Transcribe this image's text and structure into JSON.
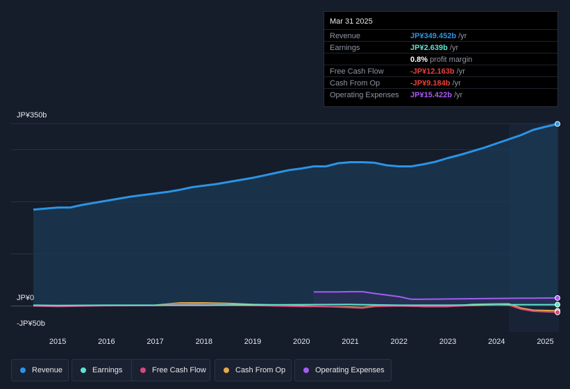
{
  "chart_data": {
    "type": "line",
    "title": "",
    "y_unit": "JP¥b",
    "ylim": [
      -50,
      350
    ],
    "y_tick_labels": {
      "top": "JP¥350b",
      "zero": "JP¥0",
      "bottom": "-JP¥50b"
    },
    "x_tick_labels": [
      "2015",
      "2016",
      "2017",
      "2018",
      "2019",
      "2020",
      "2021",
      "2022",
      "2023",
      "2024",
      "2025"
    ],
    "series": [
      {
        "name": "Revenue",
        "color": "#2b94e4",
        "x": [
          2014.5,
          2014.75,
          2015.0,
          2015.25,
          2015.5,
          2015.75,
          2016.0,
          2016.25,
          2016.5,
          2016.75,
          2017.0,
          2017.25,
          2017.5,
          2017.75,
          2018.0,
          2018.25,
          2018.5,
          2018.75,
          2019.0,
          2019.25,
          2019.5,
          2019.75,
          2020.0,
          2020.25,
          2020.5,
          2020.75,
          2021.0,
          2021.25,
          2021.5,
          2021.75,
          2022.0,
          2022.25,
          2022.5,
          2022.75,
          2023.0,
          2023.25,
          2023.5,
          2023.75,
          2024.0,
          2024.25,
          2024.5,
          2024.75,
          2025.0,
          2025.25
        ],
        "values": [
          185,
          187,
          189,
          189,
          194,
          198,
          202,
          206,
          210,
          213,
          216,
          219,
          223,
          228,
          231,
          234,
          238,
          242,
          246,
          251,
          256,
          261,
          264,
          268,
          268,
          274,
          276,
          276,
          275,
          270,
          268,
          268,
          272,
          277,
          284,
          290,
          297,
          304,
          312,
          320,
          328,
          338,
          344,
          349.5
        ]
      },
      {
        "name": "Earnings",
        "color": "#5ee3d0",
        "x": [
          2014.5,
          2015.0,
          2016.0,
          2017.0,
          2018.0,
          2019.0,
          2020.0,
          2021.0,
          2022.0,
          2023.0,
          2024.0,
          2025.25
        ],
        "values": [
          1.5,
          1.0,
          1.5,
          1.5,
          1.5,
          2.0,
          2.5,
          3.0,
          1.5,
          1.5,
          2.5,
          2.6
        ]
      },
      {
        "name": "Free Cash Flow",
        "color": "#d5487b",
        "x": [
          2014.5,
          2015.0,
          2016.0,
          2017.0,
          2017.5,
          2018.0,
          2018.5,
          2019.0,
          2019.5,
          2020.0,
          2020.5,
          2021.0,
          2021.25,
          2021.5,
          2022.0,
          2022.5,
          2023.0,
          2023.5,
          2024.0,
          2024.25,
          2024.5,
          2024.75,
          2025.25
        ],
        "values": [
          0,
          -1,
          0.5,
          1,
          4,
          3,
          2,
          1,
          0,
          -1,
          -1,
          -3,
          -4,
          -1,
          0,
          -1,
          -1,
          1,
          3,
          2,
          -6,
          -10,
          -12.2
        ]
      },
      {
        "name": "Cash From Op",
        "color": "#e8a94a",
        "x": [
          2014.5,
          2015.0,
          2016.0,
          2017.0,
          2017.5,
          2018.0,
          2018.5,
          2019.0,
          2019.5,
          2020.0,
          2020.5,
          2021.0,
          2021.25,
          2021.5,
          2022.0,
          2022.5,
          2023.0,
          2023.5,
          2024.0,
          2024.25,
          2024.5,
          2024.75,
          2025.25
        ],
        "values": [
          0.5,
          0,
          1,
          1.5,
          6,
          6,
          5,
          3,
          2,
          0,
          -1,
          -2,
          -3,
          0,
          1,
          -1,
          -1,
          3,
          4,
          4,
          -4,
          -8,
          -9.2
        ]
      },
      {
        "name": "Operating Expenses",
        "color": "#a55cf2",
        "x": [
          2020.25,
          2020.75,
          2021.0,
          2021.25,
          2021.5,
          2021.75,
          2022.0,
          2022.25,
          2022.5,
          2023.0,
          2023.5,
          2024.0,
          2024.5,
          2025.25
        ],
        "values": [
          27,
          27,
          27.5,
          27.5,
          24,
          21,
          18,
          13,
          13,
          13.5,
          14,
          14.5,
          15,
          15.4
        ]
      }
    ],
    "highlight_start": 2024.25,
    "tooltip": {
      "date": "Mar 31 2025",
      "rows": [
        {
          "label": "Revenue",
          "value": "JP¥349.452b",
          "unit": "/yr",
          "color": "#2b94e4"
        },
        {
          "label": "Earnings",
          "value": "JP¥2.639b",
          "unit": "/yr",
          "color": "#5ee3d0"
        },
        {
          "label": "",
          "value": "0.8%",
          "unit": "profit margin",
          "color": "#ffffff"
        },
        {
          "label": "Free Cash Flow",
          "value": "-JP¥12.163b",
          "unit": "/yr",
          "color": "#e8413b"
        },
        {
          "label": "Cash From Op",
          "value": "-JP¥9.184b",
          "unit": "/yr",
          "color": "#e8413b"
        },
        {
          "label": "Operating Expenses",
          "value": "JP¥15.422b",
          "unit": "/yr",
          "color": "#a55cf2"
        }
      ]
    },
    "legend": [
      "Revenue",
      "Earnings",
      "Free Cash Flow",
      "Cash From Op",
      "Operating Expenses"
    ]
  }
}
